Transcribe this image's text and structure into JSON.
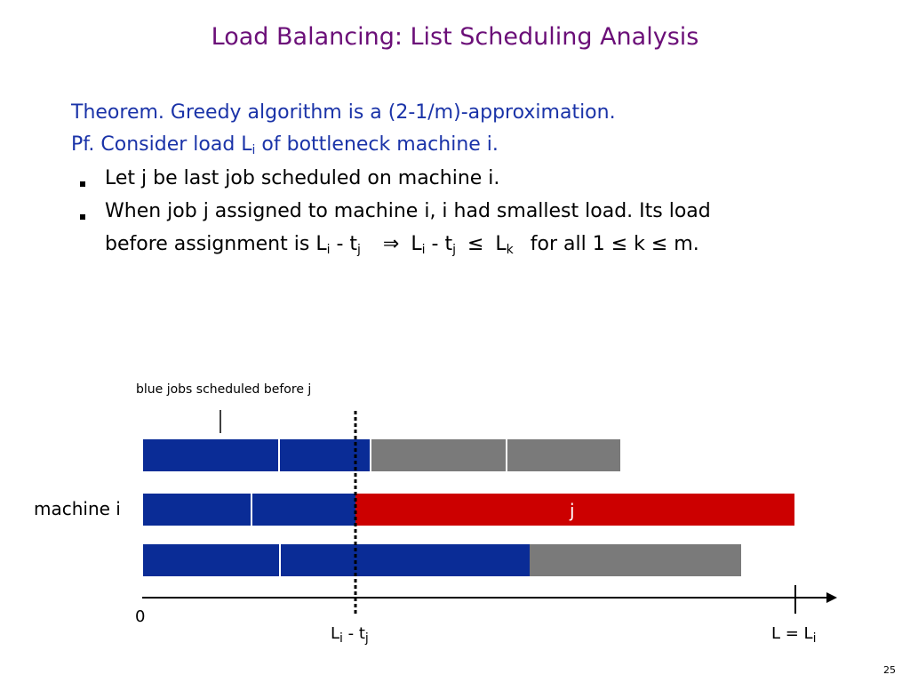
{
  "slide": {
    "title": "Load Balancing:  List Scheduling Analysis",
    "page_number": "25"
  },
  "text": {
    "theorem": "Theorem.  Greedy algorithm is a (2-1/m)-approximation.",
    "pf_prefix": "Pf.  Consider load L",
    "pf_sub": "i",
    "pf_suffix": " of bottleneck machine i.",
    "bullet1": "Let j be last job scheduled on machine i.",
    "bullet2_line1": "When job j assigned to machine i, i had smallest load.  Its load",
    "bullet2_line2": {
      "prefix": "before assignment is L",
      "sub_i1": "i",
      "minus1": " - t",
      "sub_j1": "j",
      "implies": "⇒",
      "l2": "L",
      "sub_i2": "i",
      "minus2": " - t",
      "sub_j2": "j",
      "leq": "≤",
      "lk": "L",
      "sub_k": "k",
      "tail": "for all 1 ≤ k ≤ m."
    }
  },
  "diagram": {
    "annotation": "blue jobs scheduled before j",
    "machine_label": "machine i",
    "job_j_label": "j",
    "axis": {
      "origin_label": "0",
      "marker_label_main": "L",
      "marker_sub_i": "i",
      "marker_minus": " - t",
      "marker_sub_j": "j",
      "end_label_main": "L = L",
      "end_sub_i": "i"
    },
    "colors": {
      "blue_job": "#0a2c96",
      "gray_job": "#7a7a7a",
      "red_job": "#cc0000",
      "title": "#6b0f78",
      "theorem_text": "#1a33a8"
    }
  }
}
